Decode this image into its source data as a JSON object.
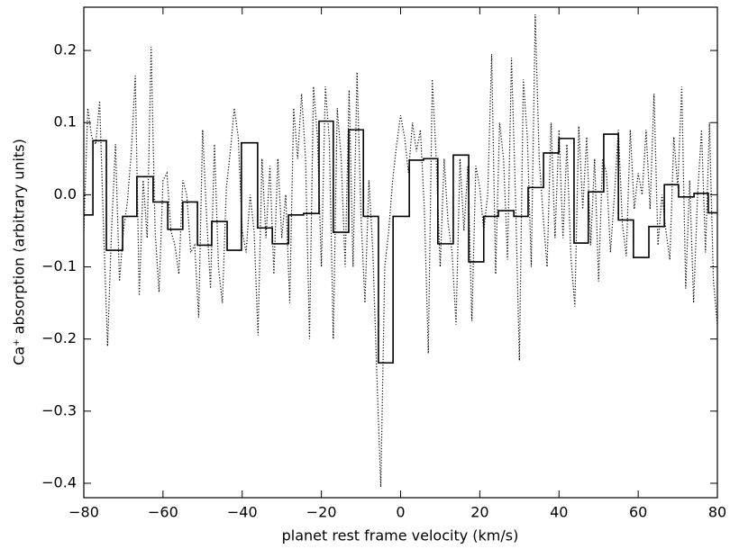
{
  "chart_data": {
    "type": "line",
    "xlabel": "planet rest frame velocity (km/s)",
    "ylabel": "Ca⁺ absorption (arbitrary units)",
    "xlim": [
      -80,
      80
    ],
    "xticks": [
      {
        "value": -80,
        "label": "−80"
      },
      {
        "value": -60,
        "label": "−60"
      },
      {
        "value": -40,
        "label": "−40"
      },
      {
        "value": -20,
        "label": "−20"
      },
      0,
      20,
      40,
      60,
      80
    ],
    "ylim": [
      -0.42,
      0.26
    ],
    "yticks": [
      {
        "value": -0.4,
        "label": "−0.4"
      },
      {
        "value": -0.3,
        "label": "−0.3"
      },
      {
        "value": -0.2,
        "label": "−0.2"
      },
      {
        "value": -0.1,
        "label": "−0.1"
      },
      {
        "value": 0,
        "label": "0.0"
      },
      0.1,
      0.2
    ],
    "series": [
      {
        "color": "#000000",
        "style": "dotted",
        "x": [
          -80,
          -79,
          -78,
          -77,
          -76,
          -75,
          -74,
          -73,
          -72,
          -71,
          -70,
          -69,
          -68,
          -67,
          -66,
          -65,
          -64,
          -63,
          -62,
          -61,
          -60,
          -59,
          -58,
          -57,
          -56,
          -55,
          -54,
          -53,
          -52,
          -51,
          -50,
          -49,
          -48,
          -47,
          -46,
          -45,
          -44,
          -43,
          -42,
          -41,
          -40,
          -39,
          -38,
          -37,
          -36,
          -35,
          -34,
          -33,
          -32,
          -31,
          -30,
          -29,
          -28,
          -27,
          -26,
          -25,
          -24,
          -23,
          -22,
          -21,
          -20,
          -19,
          -18,
          -17,
          -16,
          -15,
          -14,
          -13,
          -12,
          -11,
          -10,
          -9,
          -8,
          -7,
          -6,
          -5,
          -4,
          -3,
          -2,
          -1,
          0,
          1,
          2,
          3,
          4,
          5,
          6,
          7,
          8,
          9,
          10,
          11,
          12,
          13,
          14,
          15,
          16,
          17,
          18,
          19,
          20,
          21,
          22,
          23,
          24,
          25,
          26,
          27,
          28,
          29,
          30,
          31,
          32,
          33,
          34,
          35,
          36,
          37,
          38,
          39,
          40,
          41,
          42,
          43,
          44,
          45,
          46,
          47,
          48,
          49,
          50,
          51,
          52,
          53,
          54,
          55,
          56,
          57,
          58,
          59,
          60,
          61,
          62,
          63,
          64,
          65,
          66,
          67,
          68,
          69,
          70,
          71,
          72,
          73,
          74,
          75,
          76,
          77,
          78,
          79,
          80
        ],
        "values": [
          -0.05,
          0.12,
          0.08,
          0.07,
          0.13,
          -0.05,
          -0.21,
          -0.05,
          0.07,
          -0.12,
          -0.05,
          -0.01,
          0.06,
          0.165,
          -0.14,
          0.02,
          -0.06,
          0.205,
          -0.05,
          -0.135,
          0.02,
          0.03,
          -0.05,
          -0.07,
          -0.11,
          0.02,
          0.0,
          -0.08,
          -0.07,
          -0.17,
          0.09,
          -0.03,
          -0.13,
          0.07,
          -0.1,
          -0.15,
          0.01,
          0.06,
          0.12,
          0.08,
          -0.05,
          -0.08,
          0.0,
          -0.05,
          -0.195,
          0.05,
          -0.06,
          0.04,
          -0.11,
          0.05,
          -0.06,
          0.0,
          -0.15,
          0.12,
          0.05,
          0.14,
          0.05,
          -0.2,
          0.15,
          0.08,
          -0.1,
          0.15,
          0.075,
          -0.2,
          0.12,
          0.05,
          -0.1,
          0.145,
          -0.1,
          0.17,
          -0.03,
          -0.15,
          0.02,
          -0.08,
          -0.25,
          -0.405,
          -0.1,
          -0.05,
          0.02,
          0.07,
          0.11,
          0.08,
          0.03,
          0.1,
          0.06,
          0.09,
          -0.02,
          -0.22,
          0.16,
          0.05,
          -0.1,
          0.05,
          -0.04,
          -0.08,
          -0.18,
          0.05,
          -0.05,
          0.04,
          -0.175,
          0.04,
          0.01,
          -0.05,
          0.0,
          0.195,
          -0.11,
          0.1,
          0.05,
          -0.09,
          0.19,
          0.0,
          -0.23,
          0.16,
          0.08,
          -0.1,
          0.25,
          0.05,
          -0.03,
          -0.1,
          0.1,
          -0.06,
          0.09,
          -0.06,
          0.07,
          -0.085,
          -0.155,
          0.095,
          -0.02,
          0.08,
          -0.07,
          0.05,
          -0.12,
          0.05,
          0.03,
          -0.08,
          0.0,
          0.09,
          -0.04,
          -0.085,
          0.09,
          -0.02,
          0.03,
          0.0,
          0.09,
          -0.02,
          0.14,
          -0.07,
          0.0,
          -0.05,
          -0.09,
          0.08,
          0.01,
          0.15,
          -0.13,
          0.02,
          -0.15,
          0.0,
          0.09,
          -0.08,
          0.1,
          -0.12,
          -0.18
        ]
      },
      {
        "color": "#000000",
        "style": "solid",
        "step": "post",
        "x": [
          -80,
          -77.7,
          -74.3,
          -70.2,
          -66.6,
          -62.5,
          -58.8,
          -55.0,
          -51.3,
          -47.7,
          -43.8,
          -40.2,
          -36.1,
          -32.4,
          -28.3,
          -24.5,
          -20.6,
          -17.0,
          -13.1,
          -9.4,
          -5.6,
          -1.9,
          2.2,
          5.8,
          9.4,
          13.3,
          17.2,
          21.0,
          24.7,
          28.6,
          32.2,
          36.1,
          40.0,
          43.8,
          47.4,
          51.3,
          55.0,
          58.8,
          62.7,
          66.6,
          70.2,
          74.1,
          77.7
        ],
        "values": [
          -0.028,
          0.075,
          -0.077,
          -0.03,
          0.025,
          -0.01,
          -0.048,
          -0.01,
          -0.07,
          -0.037,
          -0.077,
          0.072,
          -0.046,
          -0.068,
          -0.028,
          -0.026,
          0.102,
          -0.052,
          0.09,
          -0.03,
          -0.233,
          -0.03,
          0.048,
          0.05,
          -0.068,
          0.055,
          -0.093,
          -0.03,
          -0.022,
          -0.03,
          0.01,
          0.058,
          0.078,
          -0.067,
          0.004,
          0.084,
          -0.035,
          -0.087,
          -0.044,
          0.014,
          -0.003,
          0.002,
          -0.025
        ]
      }
    ]
  }
}
